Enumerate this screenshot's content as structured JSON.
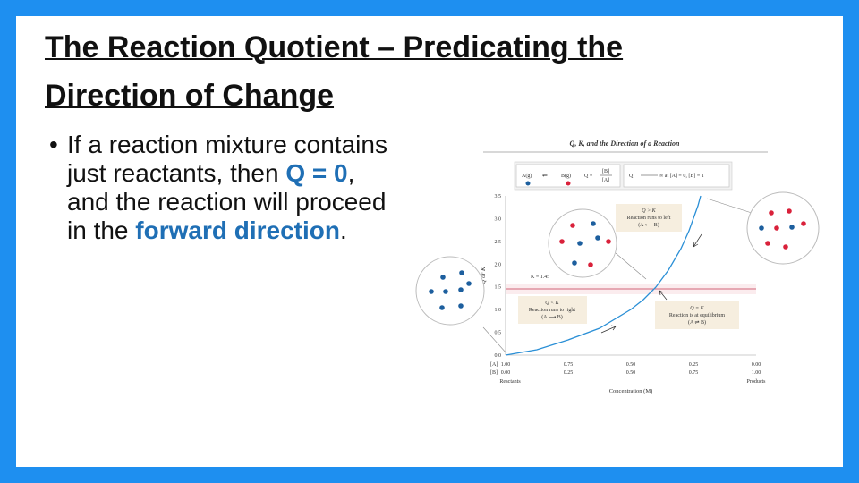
{
  "slide": {
    "title_lines": [
      "The Reaction Quotient – Predicating the",
      "Direction of Change"
    ],
    "bullet": [
      "If a reaction mixture contains just reactants, then ",
      "Q = 0",
      ", and the reaction will proceed in the ",
      "forward direction",
      "."
    ]
  },
  "figure": {
    "title": "Q, K, and the Direction of a Reaction",
    "legend": {
      "a": "A(g)",
      "b": "B(g)",
      "q_eq": "Q =",
      "num": "[B]",
      "den": "[A]",
      "q": "Q",
      "limit": "∞ at [A] = 0, [B] = 1"
    },
    "y_label": "Q or K",
    "y_ticks": [
      "0.0",
      "0.5",
      "1.0",
      "1.5",
      "2.0",
      "2.5",
      "3.0",
      "3.5"
    ],
    "row_labels": [
      "[A]",
      "[B]"
    ],
    "x_ticks_a": [
      "1.00",
      "0.75",
      "0.50",
      "0.25",
      "0.00"
    ],
    "x_ticks_b": [
      "0.00",
      "0.25",
      "0.50",
      "0.75",
      "1.00"
    ],
    "end_labels": [
      "Reactants",
      "Products"
    ],
    "x_label": "Concentration (M)",
    "k_label": "K = 1.45",
    "annotations": [
      [
        "Q > K",
        "Reaction runs to left",
        "(A ⟵ B)"
      ],
      [
        "Q < K",
        "Reaction runs to right",
        "(A ⟶ B)"
      ],
      [
        "Q = K",
        "Reaction is at equilibrium",
        "(A ⇌ B)"
      ]
    ]
  }
}
